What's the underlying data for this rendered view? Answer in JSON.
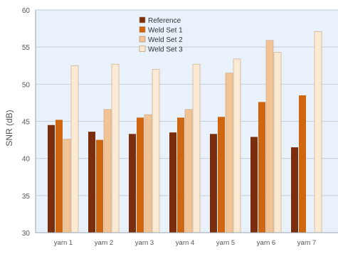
{
  "chart_data": {
    "type": "bar",
    "title": "",
    "xlabel": "",
    "ylabel": "SNR (dB)",
    "ylim": [
      30,
      60
    ],
    "yticks": [
      30,
      35,
      40,
      45,
      50,
      55,
      60
    ],
    "grid": "horizontal",
    "legend_position": "top-center",
    "categories": [
      "yarn 1",
      "yarn 2",
      "yarn 3",
      "yarn 4",
      "yarn 5",
      "yarn 6",
      "yarn 7"
    ],
    "series": [
      {
        "name": "Reference",
        "color": "#7a2e0e",
        "values": [
          44.5,
          43.6,
          43.3,
          43.5,
          43.3,
          42.9,
          41.5
        ]
      },
      {
        "name": "Weld Set 1",
        "color": "#d0660f",
        "values": [
          45.2,
          42.5,
          45.5,
          45.5,
          45.6,
          47.6,
          48.5
        ]
      },
      {
        "name": "Weld Set 2",
        "color": "#f2c395",
        "values": [
          42.6,
          46.6,
          45.9,
          46.6,
          51.5,
          55.9,
          null
        ]
      },
      {
        "name": "Weld Set 3",
        "color": "#fbead3",
        "values": [
          52.5,
          52.7,
          52.0,
          52.7,
          53.4,
          54.3,
          57.1
        ]
      }
    ]
  }
}
